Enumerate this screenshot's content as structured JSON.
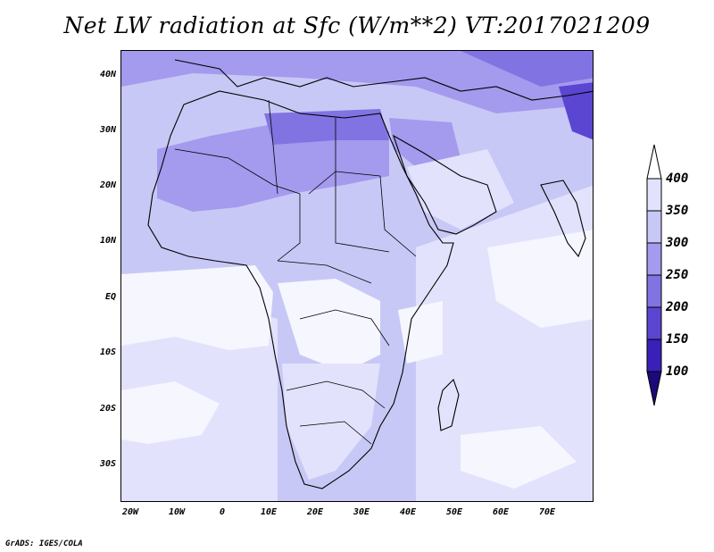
{
  "title": "Net LW radiation at Sfc (W/m**2) VT:2017021209",
  "footer": "GrADS: IGES/COLA",
  "lat_labels": [
    "40N",
    "30N",
    "20N",
    "10N",
    "EQ",
    "10S",
    "20S",
    "30S"
  ],
  "lon_labels": [
    "20W",
    "10W",
    "0",
    "10E",
    "20E",
    "30E",
    "40E",
    "50E",
    "60E",
    "70E"
  ],
  "colorbar": {
    "labels": [
      "400",
      "350",
      "300",
      "250",
      "200",
      "150",
      "100"
    ],
    "colors": [
      "#ffffff",
      "#e2e2fc",
      "#c8c8f6",
      "#a49aee",
      "#8273e2",
      "#5a46d0",
      "#3a20b8",
      "#1c0a7a"
    ]
  },
  "colors": {
    "level_350_400": "#e2e2fc",
    "level_300_350": "#c8c8f6",
    "level_250_300": "#a49aee",
    "level_200_250": "#8273e2",
    "level_above_400": "#ffffff"
  }
}
